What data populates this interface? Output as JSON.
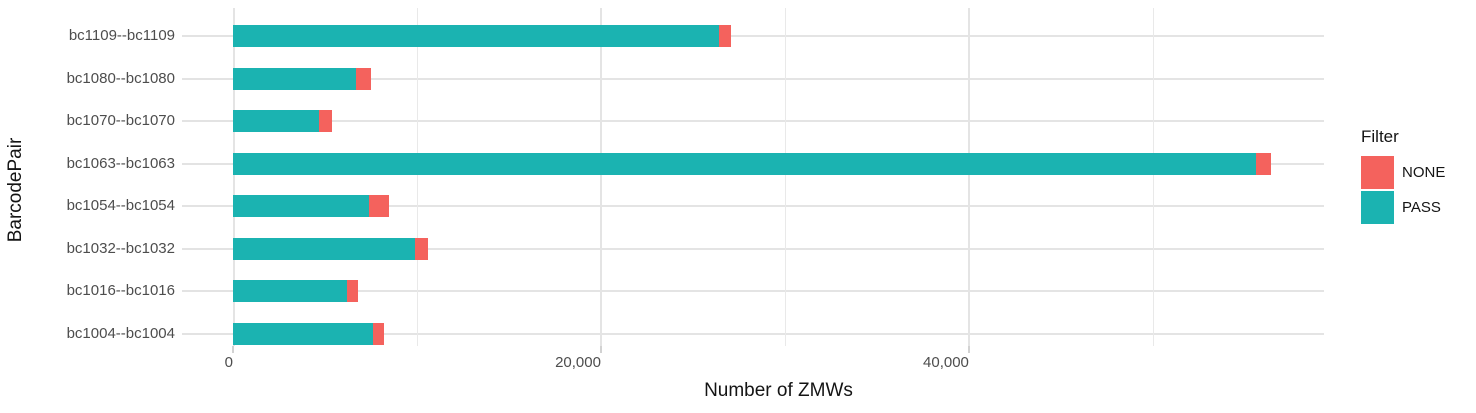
{
  "chart_data": {
    "type": "bar",
    "orientation": "horizontal_stacked",
    "title": "",
    "xlabel": "Number of ZMWs",
    "ylabel": "BarcodePair",
    "categories_top_to_bottom": [
      "bc1109--bc1109",
      "bc1080--bc1080",
      "bc1070--bc1070",
      "bc1063--bc1063",
      "bc1054--bc1054",
      "bc1032--bc1032",
      "bc1016--bc1016",
      "bc1004--bc1004"
    ],
    "series": [
      {
        "name": "PASS",
        "color": "#1bb3b1",
        "values": [
          26400,
          6700,
          4700,
          55600,
          7400,
          9900,
          6200,
          7600
        ]
      },
      {
        "name": "NONE",
        "color": "#f4625d",
        "values": [
          650,
          800,
          700,
          800,
          1100,
          700,
          600,
          600
        ]
      }
    ],
    "stack_order_left_to_right": [
      "PASS",
      "NONE"
    ],
    "xlim": [
      0,
      59300
    ],
    "x_major_ticks": [
      {
        "value": 0,
        "label": "0"
      },
      {
        "value": 20000,
        "label": "20,000"
      },
      {
        "value": 40000,
        "label": "40,000"
      }
    ],
    "x_minor_gridlines": [
      10000,
      30000,
      50000
    ],
    "grid": true,
    "legend": {
      "title": "Filter",
      "position": "right",
      "entries": [
        {
          "label": "NONE",
          "color": "#f4625d"
        },
        {
          "label": "PASS",
          "color": "#1bb3b1"
        }
      ]
    },
    "colors": {
      "background": "#ffffff",
      "grid_major": "#e4e4e4",
      "grid_minor": "#e9e9e9",
      "axis_tick": "#d2d2d2",
      "axis_text": "#4d4d4d",
      "title_text": "#141414"
    }
  }
}
